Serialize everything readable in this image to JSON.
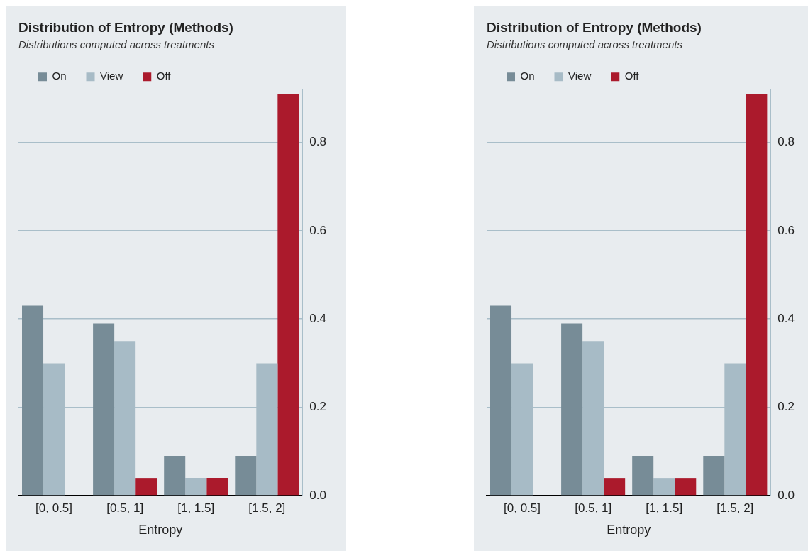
{
  "chart_data": [
    {
      "type": "bar",
      "title": "Distribution of Entropy (Methods)",
      "subtitle": "Distributions computed across treatments",
      "xlabel": "Entropy",
      "categories": [
        "[0, 0.5]",
        "[0.5, 1]",
        "[1, 1.5]",
        "[1.5, 2]"
      ],
      "series": [
        {
          "name": "On",
          "color": "#778c97",
          "values": [
            0.43,
            0.39,
            0.09,
            0.09
          ]
        },
        {
          "name": "View",
          "color": "#a7bbc6",
          "values": [
            0.3,
            0.35,
            0.04,
            0.3
          ]
        },
        {
          "name": "Off",
          "color": "#ab1a2c",
          "values": [
            0,
            0.04,
            0.04,
            0.91
          ]
        }
      ],
      "ylim": [
        0,
        0.92
      ],
      "yticks": [
        {
          "value": 0,
          "label": "0.0"
        },
        0.2,
        0.4,
        0.6,
        0.8
      ],
      "grid": "y",
      "legend": "top left"
    },
    {
      "type": "bar",
      "title": "Distribution of Entropy (Methods)",
      "subtitle": "Distributions computed across treatments",
      "xlabel": "Entropy",
      "categories": [
        "[0, 0.5]",
        "[0.5, 1]",
        "[1, 1.5]",
        "[1.5, 2]"
      ],
      "series": [
        {
          "name": "On",
          "color": "#778c97",
          "values": [
            0.43,
            0.39,
            0.09,
            0.09
          ]
        },
        {
          "name": "View",
          "color": "#a7bbc6",
          "values": [
            0.3,
            0.35,
            0.04,
            0.3
          ]
        },
        {
          "name": "Off",
          "color": "#ab1a2c",
          "values": [
            0,
            0.04,
            0.04,
            0.91
          ]
        }
      ],
      "ylim": [
        0,
        0.92
      ],
      "yticks": [
        {
          "value": 0,
          "label": "0.0"
        },
        0.2,
        0.4,
        0.6,
        0.8
      ],
      "grid": "y",
      "legend": "top left"
    }
  ]
}
